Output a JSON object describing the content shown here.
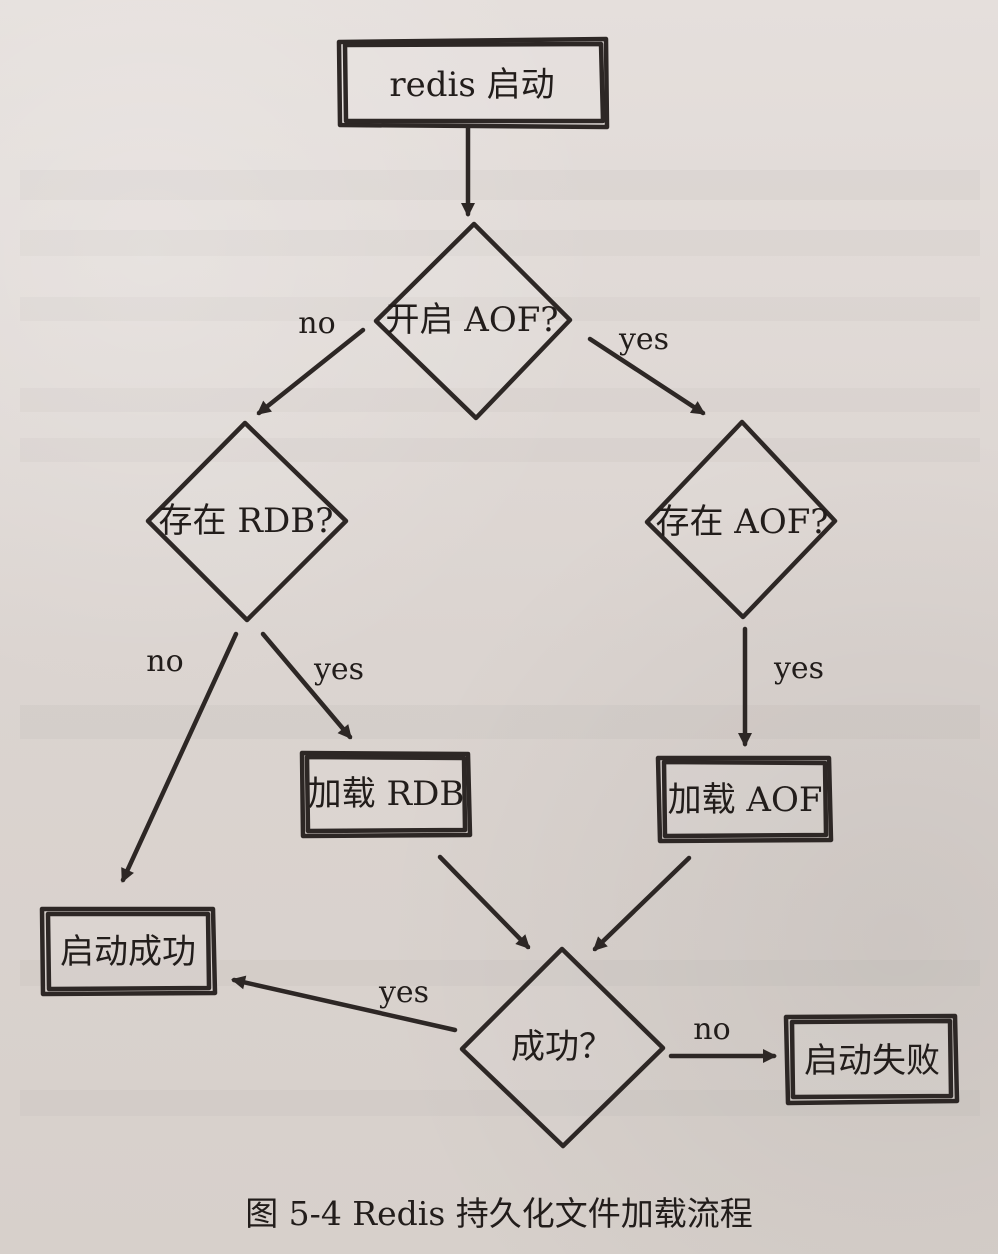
{
  "diagram": {
    "nodes": {
      "redis_start": "redis 启动",
      "aof_enabled": "开启 AOF?",
      "rdb_exists": "存在 RDB?",
      "aof_exists": "存在 AOF?",
      "load_rdb": "加载 RDB",
      "load_aof": "加载 AOF",
      "start_success": "启动成功",
      "success_check": "成功？",
      "start_failed": "启动失败"
    },
    "edges": {
      "aof_no": "no",
      "aof_yes": "yes",
      "rdb_no": "no",
      "rdb_yes": "yes",
      "aof_exists_yes": "yes",
      "success_yes": "yes",
      "success_no": "no"
    }
  },
  "caption": {
    "text": "图 5-4    Redis 持久化文件加载流程"
  }
}
